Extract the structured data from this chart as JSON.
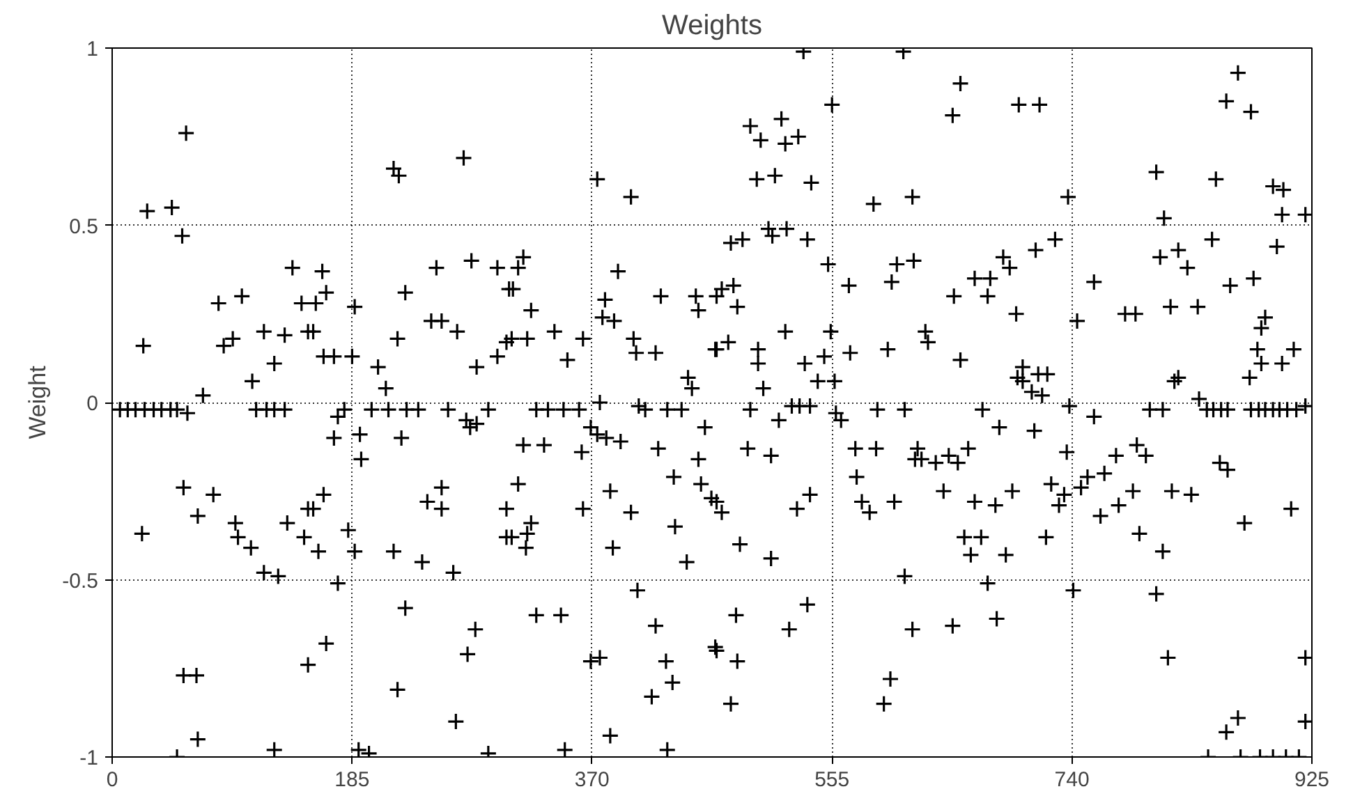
{
  "chart_data": {
    "type": "scatter",
    "title": "Weights",
    "ylabel": "Weight",
    "xlim": [
      0,
      925
    ],
    "ylim": [
      -1,
      1
    ],
    "xticks": [
      0,
      185,
      370,
      555,
      740,
      925
    ],
    "yticks": [
      -1,
      -0.5,
      0,
      0.5,
      1
    ],
    "grid": true,
    "marker": "cross",
    "series": [
      {
        "color": "#000000",
        "x": [
          23,
          24,
          27,
          46,
          54,
          57,
          6,
          12,
          18,
          25,
          32,
          38,
          45,
          50,
          58,
          70,
          55,
          66,
          55,
          65,
          66,
          82,
          100,
          86,
          93,
          108,
          117,
          133,
          125,
          139,
          146,
          151,
          111,
          119,
          125,
          133,
          78,
          95,
          97,
          107,
          135,
          148,
          117,
          128,
          125,
          50,
          151,
          162,
          165,
          157,
          155,
          163,
          171,
          187,
          185,
          205,
          211,
          226,
          220,
          250,
          246,
          254,
          266,
          277,
          281,
          297,
          304,
          297,
          306,
          217,
          221,
          271,
          174,
          179,
          200,
          213,
          227,
          236,
          259,
          273,
          281,
          276,
          290,
          171,
          191,
          192,
          223,
          163,
          155,
          182,
          159,
          187,
          217,
          239,
          263,
          174,
          243,
          254,
          254,
          304,
          304,
          226,
          165,
          151,
          220,
          280,
          274,
          265,
          190,
          198,
          290,
          317,
          313,
          309,
          323,
          320,
          308,
          341,
          363,
          351,
          374,
          400,
          390,
          380,
          378,
          387,
          423,
          450,
          452,
          466,
          402,
          404,
          419,
          444,
          447,
          465,
          327,
          336,
          348,
          360,
          376,
          411,
          428,
          439,
          406,
          369,
          374,
          381,
          392,
          317,
          333,
          362,
          421,
          457,
          452,
          433,
          454,
          462,
          313,
          384,
          363,
          400,
          323,
          320,
          319,
          308,
          434,
          386,
          443,
          405,
          327,
          346,
          419,
          369,
          376,
          427,
          432,
          416,
          384,
          465,
          349,
          428,
          533,
          610,
          555,
          492,
          516,
          500,
          519,
          529,
          497,
          511,
          539,
          587,
          617,
          477,
          486,
          506,
          520,
          509,
          536,
          552,
          568,
          605,
          618,
          601,
          470,
          479,
          482,
          519,
          554,
          466,
          475,
          498,
          498,
          534,
          549,
          569,
          598,
          502,
          544,
          557,
          492,
          524,
          530,
          538,
          558,
          562,
          590,
          611,
          514,
          490,
          508,
          573,
          589,
          574,
          578,
          584,
          603,
          619,
          538,
          528,
          466,
          470,
          484,
          508,
          611,
          481,
          536,
          522,
          466,
          482,
          477,
          617,
          600,
          595,
          654,
          648,
          699,
          715,
          737,
          727,
          712,
          687,
          692,
          665,
          677,
          649,
          675,
          697,
          757,
          744,
          627,
          629,
          654,
          702,
          698,
          714,
          721,
          702,
          709,
          717,
          781,
          671,
          738,
          757,
          684,
          711,
          736,
          621,
          624,
          635,
          645,
          652,
          660,
          774,
          765,
          752,
          747,
          724,
          734,
          730,
          776,
          762,
          641,
          665,
          681,
          694,
          657,
          670,
          662,
          689,
          720,
          675,
          741,
          682,
          648,
          868,
          859,
          878,
          805,
          851,
          895,
          903,
          811,
          902,
          920,
          848,
          808,
          822,
          829,
          898,
          862,
          880,
          789,
          816,
          837,
          889,
          886,
          883,
          886,
          877,
          911,
          902,
          822,
          819,
          838,
          800,
          810,
          844,
          849,
          855,
          860,
          878,
          884,
          889,
          895,
          900,
          906,
          913,
          920,
          790,
          797,
          787,
          854,
          860,
          817,
          832,
          792,
          810,
          873,
          909,
          805,
          814,
          920,
          868,
          859,
          920,
          845,
          870,
          885,
          895,
          905,
          915
        ],
        "values": [
          -0.37,
          0.16,
          0.54,
          0.55,
          0.47,
          0.76,
          -0.02,
          -0.02,
          -0.02,
          -0.02,
          -0.02,
          -0.02,
          -0.02,
          -0.02,
          -0.03,
          0.02,
          -0.24,
          -0.32,
          -0.77,
          -0.77,
          -0.95,
          0.28,
          0.3,
          0.16,
          0.18,
          0.06,
          0.2,
          0.19,
          0.11,
          0.38,
          0.28,
          0.2,
          -0.02,
          -0.02,
          -0.02,
          -0.02,
          -0.26,
          -0.34,
          -0.38,
          -0.41,
          -0.34,
          -0.38,
          -0.48,
          -0.49,
          -0.98,
          -1.0,
          -0.3,
          0.37,
          0.31,
          0.28,
          0.2,
          0.13,
          0.13,
          0.27,
          0.13,
          0.1,
          0.04,
          0.31,
          0.18,
          0.38,
          0.23,
          0.23,
          0.2,
          0.4,
          0.1,
          0.13,
          0.17,
          0.38,
          0.32,
          0.66,
          0.64,
          0.69,
          -0.04,
          -0.02,
          -0.02,
          -0.02,
          -0.02,
          -0.02,
          -0.02,
          -0.05,
          -0.06,
          -0.07,
          -0.02,
          -0.1,
          -0.09,
          -0.16,
          -0.1,
          -0.26,
          -0.3,
          -0.36,
          -0.42,
          -0.42,
          -0.42,
          -0.45,
          -0.48,
          -0.51,
          -0.28,
          -0.24,
          -0.3,
          -0.3,
          -0.38,
          -0.58,
          -0.68,
          -0.74,
          -0.81,
          -0.64,
          -0.71,
          -0.9,
          -0.98,
          -0.99,
          -0.99,
          0.41,
          0.38,
          0.32,
          0.26,
          0.18,
          0.18,
          0.2,
          0.18,
          0.12,
          0.63,
          0.58,
          0.37,
          0.29,
          0.24,
          0.23,
          0.3,
          0.3,
          0.26,
          0.3,
          0.18,
          0.14,
          0.14,
          0.07,
          0.04,
          0.15,
          -0.02,
          -0.02,
          -0.02,
          -0.02,
          0.0,
          -0.02,
          -0.02,
          -0.02,
          -0.01,
          -0.07,
          -0.09,
          -0.1,
          -0.11,
          -0.12,
          -0.12,
          -0.14,
          -0.13,
          -0.07,
          -0.16,
          -0.21,
          -0.23,
          -0.27,
          -0.23,
          -0.25,
          -0.3,
          -0.31,
          -0.34,
          -0.37,
          -0.41,
          -0.38,
          -0.35,
          -0.41,
          -0.45,
          -0.53,
          -0.6,
          -0.6,
          -0.63,
          -0.73,
          -0.72,
          -0.73,
          -0.79,
          -0.83,
          -0.94,
          -0.69,
          -0.98,
          -0.98,
          0.99,
          0.99,
          0.84,
          0.78,
          0.8,
          0.74,
          0.73,
          0.75,
          0.63,
          0.64,
          0.62,
          0.56,
          0.58,
          0.45,
          0.46,
          0.49,
          0.49,
          0.47,
          0.46,
          0.39,
          0.33,
          0.39,
          0.4,
          0.34,
          0.32,
          0.33,
          0.27,
          0.2,
          0.2,
          0.15,
          0.17,
          0.15,
          0.11,
          0.11,
          0.13,
          0.14,
          0.15,
          0.04,
          0.06,
          0.06,
          -0.02,
          -0.01,
          -0.01,
          -0.01,
          -0.03,
          -0.05,
          -0.02,
          -0.02,
          -0.05,
          -0.13,
          -0.15,
          -0.13,
          -0.13,
          -0.21,
          -0.28,
          -0.31,
          -0.28,
          -0.16,
          -0.26,
          -0.3,
          -0.28,
          -0.31,
          -0.4,
          -0.44,
          -0.49,
          -0.6,
          -0.57,
          -0.64,
          -0.7,
          -0.73,
          -0.85,
          -0.64,
          -0.78,
          -0.85,
          0.9,
          0.81,
          0.84,
          0.84,
          0.58,
          0.46,
          0.43,
          0.41,
          0.38,
          0.35,
          0.35,
          0.3,
          0.3,
          0.25,
          0.34,
          0.23,
          0.2,
          0.17,
          0.12,
          0.1,
          0.07,
          0.08,
          0.08,
          0.06,
          0.03,
          0.02,
          0.25,
          -0.02,
          -0.01,
          -0.04,
          -0.07,
          -0.08,
          -0.14,
          -0.13,
          -0.16,
          -0.17,
          -0.15,
          -0.17,
          -0.13,
          -0.15,
          -0.2,
          -0.21,
          -0.24,
          -0.23,
          -0.26,
          -0.29,
          -0.29,
          -0.32,
          -0.25,
          -0.28,
          -0.29,
          -0.25,
          -0.38,
          -0.38,
          -0.43,
          -0.43,
          -0.38,
          -0.51,
          -0.53,
          -0.61,
          -0.63,
          0.93,
          0.85,
          0.82,
          0.65,
          0.63,
          0.61,
          0.6,
          0.52,
          0.53,
          0.53,
          0.46,
          0.41,
          0.43,
          0.38,
          0.44,
          0.33,
          0.35,
          0.25,
          0.27,
          0.27,
          0.24,
          0.21,
          0.15,
          0.11,
          0.07,
          0.15,
          0.11,
          0.07,
          0.06,
          0.01,
          -0.02,
          -0.02,
          -0.02,
          -0.02,
          -0.02,
          -0.02,
          -0.02,
          -0.02,
          -0.02,
          -0.02,
          -0.02,
          -0.02,
          -0.02,
          -0.01,
          -0.12,
          -0.15,
          -0.25,
          -0.17,
          -0.19,
          -0.25,
          -0.26,
          -0.37,
          -0.42,
          -0.34,
          -0.3,
          -0.54,
          -0.72,
          -0.72,
          -0.89,
          -0.93,
          -0.9,
          -1.0,
          -1.0,
          -1.0,
          -1.0,
          -1.0,
          -1.0
        ]
      }
    ]
  }
}
